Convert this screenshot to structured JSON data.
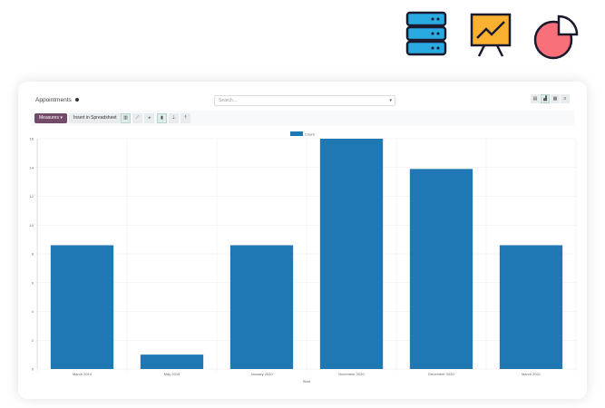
{
  "header": {
    "title": "Appointments",
    "search_placeholder": "Search..."
  },
  "toolbar": {
    "measures_label": "Measures ▾",
    "insert_label": "Insert in Spreadsheet"
  },
  "colors": {
    "bar": "#1f77b4",
    "measures": "#714b67"
  },
  "chart_data": {
    "type": "bar",
    "categories": [
      "March 2019",
      "May 2019",
      "January 2020",
      "November 2020",
      "December 2020",
      "March 2021"
    ],
    "series": [
      {
        "name": "Count",
        "values": [
          8.6,
          1,
          8.6,
          16,
          13.9,
          8.6
        ]
      }
    ],
    "xlabel": "Start",
    "ylabel": "",
    "ylim": [
      0,
      16
    ],
    "yticks": [
      0,
      2,
      4,
      6,
      8,
      10,
      12,
      14,
      16
    ],
    "grid": true,
    "legend": "top"
  }
}
